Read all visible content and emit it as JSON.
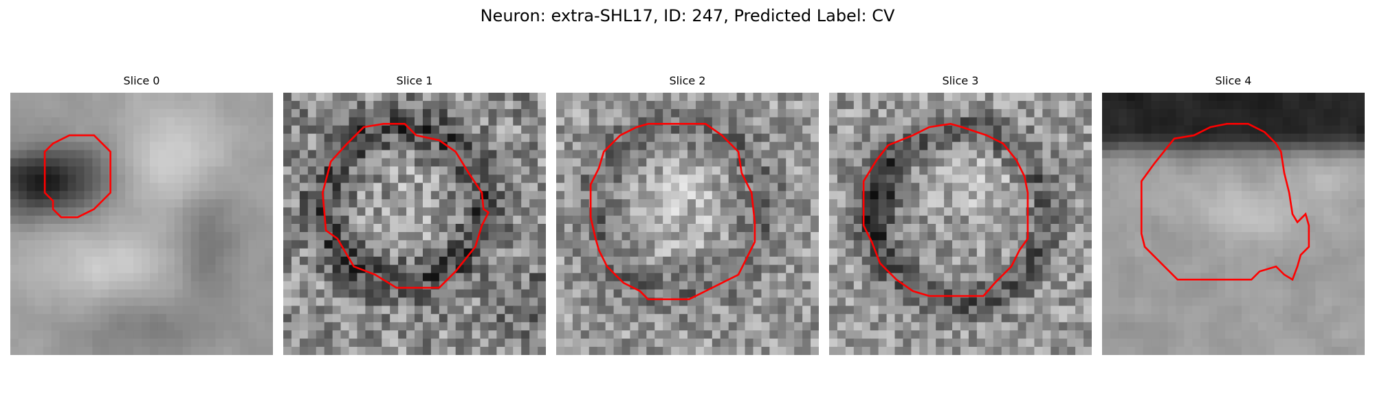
{
  "figure": {
    "title": "Neuron: extra-SHL17, ID: 247, Predicted Label: CV"
  },
  "colors": {
    "contour": "#ff0000",
    "background": "#ffffff"
  },
  "panels": [
    {
      "title": "Slice 0"
    },
    {
      "title": "Slice 1"
    },
    {
      "title": "Slice 2"
    },
    {
      "title": "Slice 3"
    },
    {
      "title": "Slice 4"
    }
  ]
}
